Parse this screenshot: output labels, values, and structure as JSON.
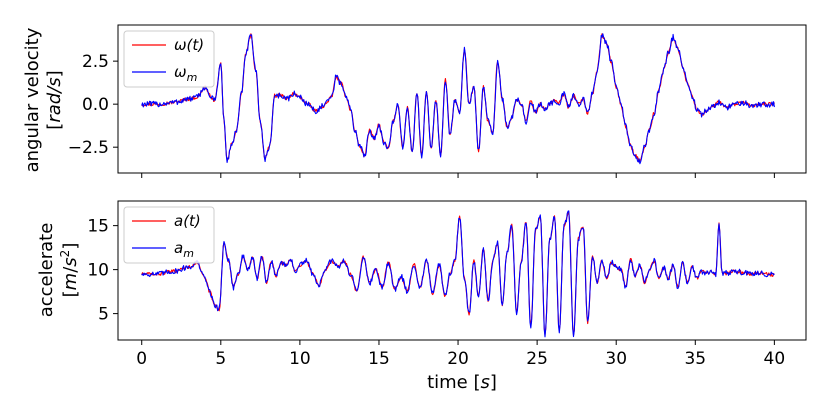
{
  "chart_data": [
    {
      "type": "line",
      "panel": "top",
      "ylabel": [
        "angular velocity",
        "[rad/s]"
      ],
      "xlim": [
        -1.5,
        42.0
      ],
      "ylim": [
        -4.0,
        4.6
      ],
      "yticks": [
        -2.5,
        0.0,
        2.5
      ],
      "ytick_labels": [
        "−2.5",
        "0.0",
        "2.5"
      ],
      "xticks": [
        0,
        5,
        10,
        15,
        20,
        25,
        30,
        35,
        40
      ],
      "grid": false,
      "legend": "top-left",
      "series": [
        {
          "name": "ω(t)",
          "color": "#ff0000",
          "role": "truth"
        },
        {
          "name": "ω_m",
          "color": "#0000ff",
          "role": "measured"
        }
      ],
      "x": [
        0,
        1,
        2,
        3,
        3.5,
        4,
        4.3,
        4.6,
        5,
        5.2,
        5.4,
        5.7,
        6.0,
        6.3,
        6.6,
        6.9,
        7.2,
        7.5,
        7.8,
        8.1,
        8.4,
        8.8,
        9.2,
        9.6,
        10.0,
        10.5,
        11.0,
        11.5,
        12.0,
        12.3,
        12.6,
        12.9,
        13.2,
        13.5,
        13.8,
        14.1,
        14.4,
        14.7,
        15.0,
        15.3,
        15.6,
        15.9,
        16.2,
        16.5,
        16.8,
        17.1,
        17.4,
        17.7,
        18.0,
        18.3,
        18.6,
        18.9,
        19.2,
        19.5,
        19.8,
        20.1,
        20.4,
        20.7,
        21.0,
        21.3,
        21.6,
        21.9,
        22.2,
        22.5,
        22.8,
        23.1,
        23.4,
        23.7,
        24.0,
        24.3,
        24.6,
        24.9,
        25.2,
        25.5,
        25.8,
        26.1,
        26.4,
        26.7,
        27.0,
        27.3,
        27.6,
        27.9,
        28.2,
        28.5,
        28.8,
        29.1,
        29.4,
        29.7,
        30.0,
        30.3,
        30.6,
        30.9,
        31.2,
        31.5,
        31.8,
        32.1,
        32.4,
        32.7,
        33.0,
        33.3,
        33.6,
        33.9,
        34.2,
        34.5,
        34.8,
        35.1,
        35.4,
        35.7,
        36.0,
        36.5,
        37.0,
        37.5,
        38.0,
        38.5,
        39.0,
        39.5,
        40.0
      ],
      "y": [
        0.0,
        0.0,
        0.1,
        0.3,
        0.4,
        1.0,
        0.5,
        0.2,
        2.3,
        -1.0,
        -3.3,
        -2.3,
        -1.5,
        0.6,
        3.0,
        4.0,
        2.0,
        -1.0,
        -3.2,
        -2.4,
        0.5,
        0.5,
        0.3,
        0.6,
        0.4,
        0.0,
        -0.4,
        -0.1,
        0.4,
        1.6,
        1.2,
        0.5,
        -0.3,
        -1.6,
        -2.5,
        -3.0,
        -1.5,
        -2.0,
        -1.2,
        -2.2,
        -2.6,
        -1.0,
        0.0,
        -2.5,
        -0.2,
        -2.8,
        0.6,
        -3.0,
        0.7,
        -2.6,
        0.2,
        -3.0,
        1.4,
        -1.8,
        0.2,
        -0.5,
        3.2,
        0.0,
        1.0,
        -2.7,
        1.0,
        -1.0,
        -1.7,
        2.5,
        0.3,
        -1.3,
        -0.8,
        0.3,
        0.0,
        -1.0,
        0.2,
        -0.5,
        0.0,
        -0.3,
        0.0,
        0.2,
        0.1,
        0.6,
        -0.2,
        0.5,
        0.0,
        0.3,
        -0.5,
        0.6,
        2.0,
        4.0,
        3.5,
        2.4,
        1.0,
        0.0,
        -1.3,
        -2.4,
        -3.0,
        -3.3,
        -2.5,
        -1.5,
        -0.5,
        0.8,
        2.0,
        3.0,
        3.9,
        3.2,
        2.2,
        1.2,
        0.5,
        -0.3,
        -0.6,
        -0.4,
        -0.2,
        0.1,
        -0.2,
        0.0,
        0.1,
        -0.1,
        0.0,
        0.0,
        0.0
      ]
    },
    {
      "type": "line",
      "panel": "bottom",
      "ylabel": [
        "accelerate",
        "[m/s²]"
      ],
      "xlabel": "time [s]",
      "xlim": [
        -1.5,
        42.0
      ],
      "ylim": [
        2.0,
        17.8
      ],
      "yticks": [
        5,
        10,
        15
      ],
      "ytick_labels": [
        "5",
        "10",
        "15"
      ],
      "xticks": [
        0,
        5,
        10,
        15,
        20,
        25,
        30,
        35,
        40
      ],
      "xtick_labels": [
        "0",
        "5",
        "10",
        "15",
        "20",
        "25",
        "30",
        "35",
        "40"
      ],
      "grid": false,
      "legend": "top-left",
      "series": [
        {
          "name": "a(t)",
          "color": "#ff0000",
          "role": "truth"
        },
        {
          "name": "a_m",
          "color": "#0000ff",
          "role": "measured"
        }
      ],
      "x": [
        0,
        1,
        2,
        3,
        3.5,
        4,
        4.3,
        4.6,
        4.9,
        5.2,
        5.5,
        5.8,
        6.1,
        6.4,
        6.7,
        7.0,
        7.3,
        7.6,
        7.9,
        8.2,
        8.5,
        8.8,
        9.1,
        9.4,
        9.7,
        10.0,
        10.4,
        10.8,
        11.2,
        11.6,
        12.0,
        12.4,
        12.8,
        13.2,
        13.6,
        14.0,
        14.4,
        14.8,
        15.2,
        15.6,
        16.0,
        16.4,
        16.8,
        17.2,
        17.6,
        18.0,
        18.4,
        18.8,
        19.2,
        19.5,
        19.8,
        20.1,
        20.4,
        20.7,
        21.0,
        21.3,
        21.6,
        21.9,
        22.2,
        22.5,
        22.8,
        23.1,
        23.4,
        23.7,
        24.0,
        24.3,
        24.6,
        24.9,
        25.2,
        25.5,
        25.8,
        26.1,
        26.4,
        26.7,
        27.0,
        27.3,
        27.6,
        27.9,
        28.2,
        28.5,
        28.8,
        29.1,
        29.4,
        29.7,
        30.0,
        30.3,
        30.6,
        30.9,
        31.2,
        31.5,
        31.8,
        32.1,
        32.4,
        32.7,
        33.0,
        33.3,
        33.6,
        33.9,
        34.2,
        34.5,
        34.8,
        35.1,
        35.4,
        35.7,
        36.0,
        36.3,
        36.5,
        36.7,
        37.0,
        37.5,
        38.0,
        38.5,
        39.0,
        39.5,
        40.0
      ],
      "y": [
        9.5,
        9.5,
        9.8,
        10.3,
        10.8,
        9.0,
        7.5,
        6.0,
        5.5,
        13.0,
        11.0,
        8.0,
        9.5,
        11.5,
        10.0,
        11.3,
        9.0,
        11.5,
        8.5,
        11.0,
        9.3,
        10.8,
        10.5,
        11.2,
        9.8,
        10.5,
        11.0,
        9.6,
        8.2,
        10.0,
        11.0,
        10.3,
        11.0,
        9.5,
        7.5,
        11.5,
        8.5,
        10.0,
        8.0,
        10.8,
        7.8,
        9.2,
        7.5,
        10.6,
        8.0,
        11.0,
        7.3,
        10.5,
        7.0,
        9.5,
        11.0,
        16.0,
        9.0,
        5.0,
        11.0,
        7.0,
        12.5,
        6.5,
        11.0,
        13.0,
        6.0,
        12.0,
        15.0,
        5.0,
        11.0,
        15.5,
        3.5,
        14.5,
        16.0,
        2.5,
        13.5,
        16.0,
        3.0,
        15.0,
        16.5,
        2.5,
        13.5,
        15.0,
        4.0,
        11.5,
        8.5,
        11.0,
        9.0,
        10.8,
        10.3,
        10.0,
        8.0,
        11.2,
        9.2,
        10.5,
        8.5,
        10.0,
        11.0,
        9.0,
        10.2,
        9.0,
        10.5,
        8.0,
        10.8,
        8.5,
        10.3,
        9.0,
        9.8,
        9.6,
        9.7,
        9.5,
        15.2,
        9.5,
        9.6,
        9.8,
        9.7,
        9.5,
        9.6,
        9.5,
        9.4
      ]
    }
  ]
}
